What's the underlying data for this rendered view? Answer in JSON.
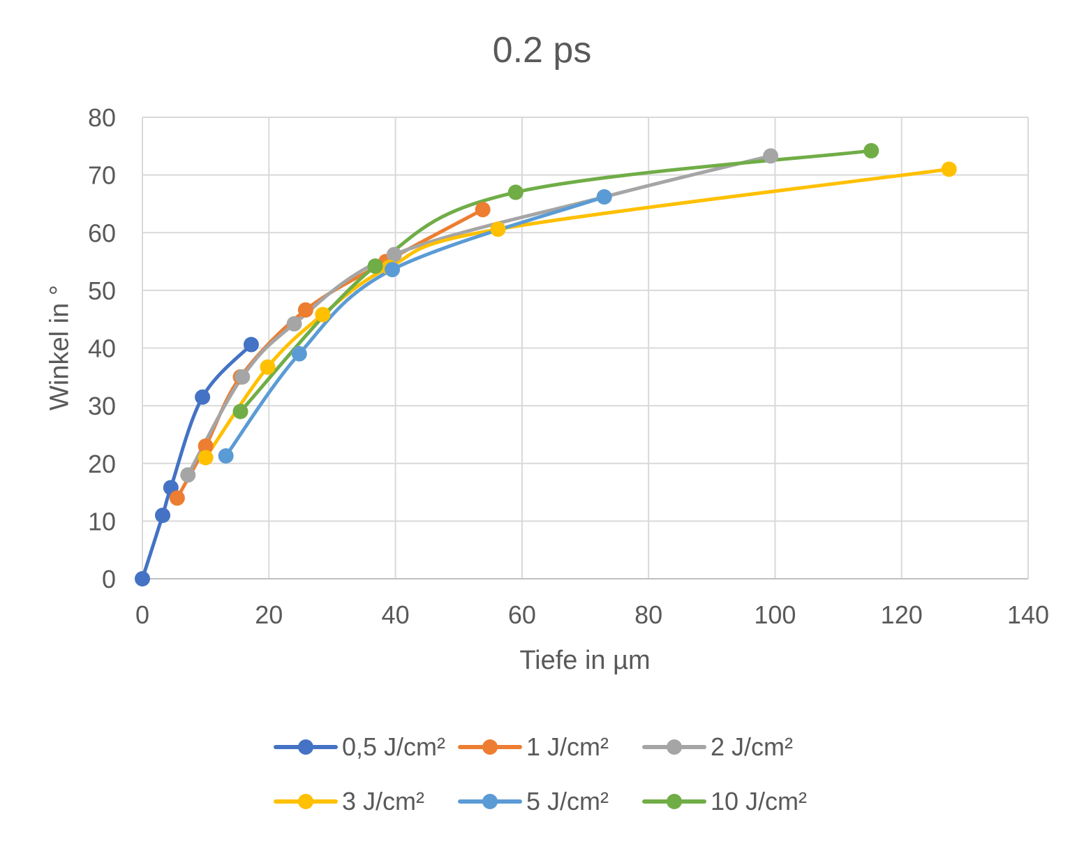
{
  "chart_data": {
    "type": "scatter",
    "title": "0.2 ps",
    "xlabel": "Tiefe in µm",
    "ylabel": "Winkel in °",
    "xlim": [
      0,
      140
    ],
    "ylim": [
      0,
      80
    ],
    "xticks": [
      0,
      20,
      40,
      60,
      80,
      100,
      120,
      140
    ],
    "yticks": [
      0,
      10,
      20,
      30,
      40,
      50,
      60,
      70,
      80
    ],
    "grid": true,
    "legend_position": "bottom",
    "smoothed_lines": true,
    "series": [
      {
        "name": "0,5 J/cm²",
        "color": "#4472C4",
        "x": [
          0,
          3.2,
          4.5,
          9.5,
          17.2
        ],
        "y": [
          0,
          11,
          15.8,
          31.5,
          40.6
        ]
      },
      {
        "name": "1 J/cm²",
        "color": "#ED7D31",
        "x": [
          5.5,
          10,
          15.5,
          25.8,
          38.5,
          53.8
        ],
        "y": [
          14,
          23,
          35,
          46.6,
          55,
          64
        ]
      },
      {
        "name": "2 J/cm²",
        "color": "#A5A5A5",
        "x": [
          7.2,
          15.8,
          24,
          39.8,
          73,
          99.3
        ],
        "y": [
          18,
          35,
          44.2,
          56.2,
          66.2,
          73.3
        ]
      },
      {
        "name": "3 J/cm²",
        "color": "#FFC000",
        "x": [
          10,
          19.8,
          28.5,
          39,
          56.2,
          127.5
        ],
        "y": [
          21,
          36.7,
          45.8,
          54,
          60.6,
          71
        ]
      },
      {
        "name": "5 J/cm²",
        "color": "#5B9BD5",
        "x": [
          13.2,
          24.8,
          39.5,
          73
        ],
        "y": [
          21.3,
          39,
          53.6,
          66.2
        ]
      },
      {
        "name": "10 J/cm²",
        "color": "#70AD47",
        "x": [
          15.5,
          36.8,
          59,
          115.2
        ],
        "y": [
          29,
          54.2,
          67,
          74.2
        ]
      }
    ]
  }
}
